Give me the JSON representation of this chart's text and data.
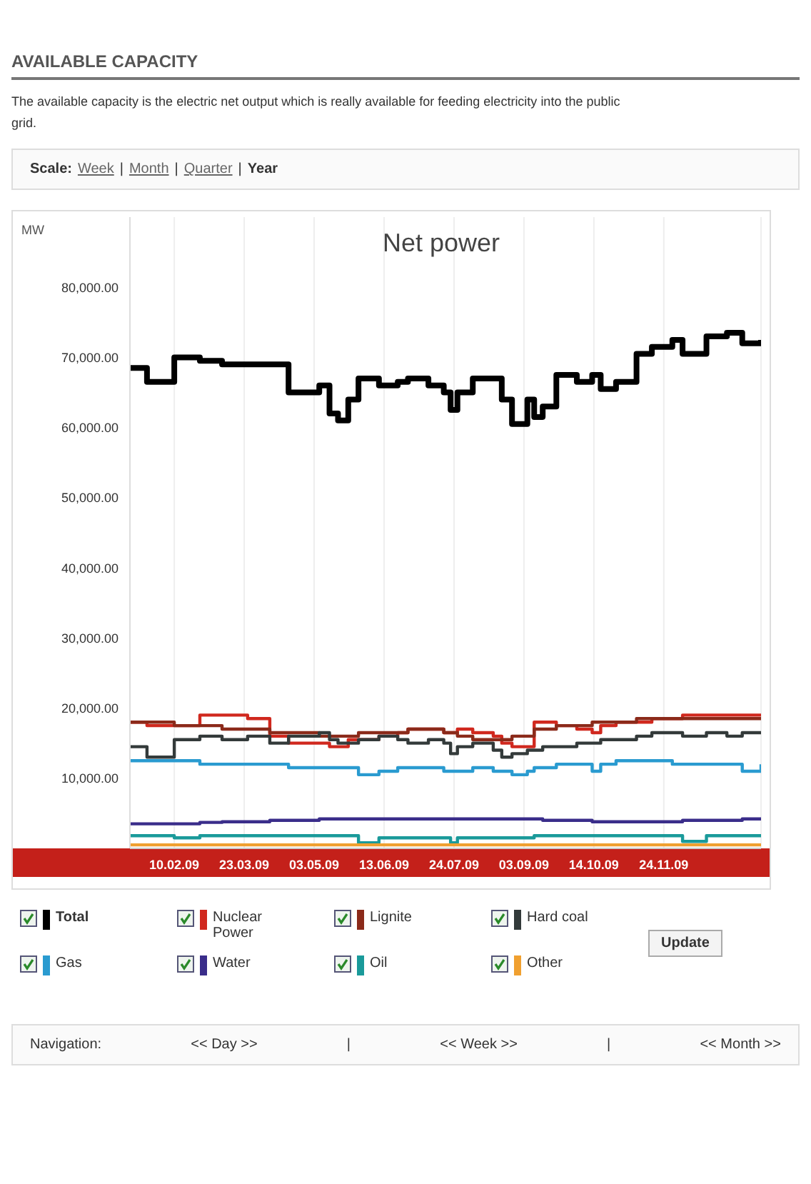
{
  "chart_data": {
    "type": "step",
    "title": "AVAILABLE CAPACITY",
    "subtitle": "The available capacity is the electric net output which is really available for feeding electricity into the public grid.",
    "ylabel": "MW",
    "annotations": [
      "Net power",
      "Scale:",
      "Week",
      "|",
      "Month",
      "|",
      "Quarter",
      "|",
      "Year",
      "Update",
      "Navigation:",
      "<< Day >>",
      "|",
      "<< Week >>",
      "|",
      "<< Month >>"
    ],
    "x": [
      "2009-01-15",
      "2009-01-25",
      "2009-02-10",
      "2009-02-25",
      "2009-03-10",
      "2009-03-25",
      "2009-04-07",
      "2009-04-18",
      "2009-05-06",
      "2009-05-12",
      "2009-05-17",
      "2009-05-23",
      "2009-05-29",
      "2009-06-10",
      "2009-06-21",
      "2009-06-27",
      "2009-07-09",
      "2009-07-18",
      "2009-07-22",
      "2009-07-26",
      "2009-08-04",
      "2009-08-16",
      "2009-08-21",
      "2009-08-27",
      "2009-09-05",
      "2009-09-09",
      "2009-09-14",
      "2009-09-22",
      "2009-10-04",
      "2009-10-13",
      "2009-10-18",
      "2009-10-27",
      "2009-11-08",
      "2009-11-17",
      "2009-11-29",
      "2009-12-05",
      "2009-12-19",
      "2009-12-31",
      "2010-01-09",
      "2010-01-20"
    ],
    "series": [
      {
        "name": "Total",
        "color": "#000000",
        "values": [
          68500,
          66500,
          70000,
          69500,
          69000,
          69000,
          69000,
          65000,
          66000,
          62000,
          61000,
          64000,
          67000,
          66000,
          66500,
          67000,
          66000,
          65000,
          62500,
          65000,
          67000,
          67000,
          64000,
          60500,
          64000,
          61500,
          63000,
          67500,
          66500,
          67500,
          65500,
          66500,
          70500,
          71500,
          72500,
          70500,
          73000,
          73500,
          72000,
          72500
        ]
      },
      {
        "name": "Nuclear Power",
        "color": "#d0281e",
        "values": [
          18000,
          17500,
          17500,
          19000,
          19000,
          18500,
          16000,
          15000,
          15000,
          14500,
          14500,
          15500,
          15500,
          16000,
          16500,
          17000,
          17000,
          16500,
          16500,
          17000,
          16500,
          16000,
          15000,
          14500,
          14500,
          18000,
          18000,
          17500,
          17000,
          16500,
          17500,
          18000,
          18000,
          18500,
          18500,
          19000,
          19000,
          19000,
          19000,
          19000
        ]
      },
      {
        "name": "Lignite",
        "color": "#8b2a1a",
        "values": [
          18000,
          18000,
          17500,
          17500,
          17000,
          17000,
          16500,
          16500,
          16000,
          16000,
          16000,
          16000,
          16500,
          16500,
          16500,
          17000,
          17000,
          16500,
          16500,
          16000,
          15500,
          15500,
          15500,
          16000,
          16000,
          17000,
          17000,
          17500,
          17500,
          18000,
          18000,
          18000,
          18500,
          18500,
          18500,
          18500,
          18500,
          18500,
          18500,
          18500
        ]
      },
      {
        "name": "Hard coal",
        "color": "#333a3a",
        "values": [
          14500,
          13000,
          15500,
          16000,
          15500,
          16000,
          15000,
          16000,
          16500,
          15500,
          15000,
          15000,
          15500,
          16000,
          15500,
          15000,
          15500,
          15000,
          13500,
          14500,
          15000,
          14000,
          13000,
          13500,
          14000,
          14000,
          14500,
          14500,
          15000,
          15000,
          15500,
          15500,
          16000,
          16500,
          16500,
          16000,
          16500,
          16000,
          16500,
          16500
        ]
      },
      {
        "name": "Gas",
        "color": "#2a9bd0",
        "values": [
          12500,
          12500,
          12500,
          12000,
          12000,
          12000,
          12000,
          11500,
          11500,
          11500,
          11500,
          11500,
          10500,
          11000,
          11500,
          11500,
          11500,
          11000,
          11000,
          11000,
          11500,
          11000,
          11000,
          10500,
          11000,
          11500,
          11500,
          12000,
          12000,
          11000,
          12000,
          12500,
          12500,
          12500,
          12000,
          12000,
          12000,
          12000,
          11000,
          12000
        ]
      },
      {
        "name": "Water",
        "color": "#3a2d8a",
        "values": [
          3500,
          3500,
          3500,
          3700,
          3800,
          3800,
          4000,
          4000,
          4200,
          4200,
          4200,
          4200,
          4200,
          4200,
          4200,
          4200,
          4200,
          4200,
          4200,
          4200,
          4200,
          4200,
          4200,
          4200,
          4200,
          4200,
          4000,
          4000,
          4000,
          3800,
          3800,
          3800,
          3800,
          3800,
          3800,
          4000,
          4000,
          4000,
          4200,
          4300
        ]
      },
      {
        "name": "Oil",
        "color": "#1a9a9a",
        "values": [
          1800,
          1800,
          1500,
          1800,
          1800,
          1800,
          1800,
          1800,
          1800,
          1800,
          1800,
          1800,
          800,
          1500,
          1500,
          1500,
          1500,
          1500,
          800,
          1500,
          1500,
          1500,
          1500,
          1500,
          1500,
          1800,
          1800,
          1800,
          1800,
          1800,
          1800,
          1800,
          1800,
          1800,
          1800,
          1000,
          1800,
          1800,
          1800,
          1800
        ]
      },
      {
        "name": "Other",
        "color": "#f0a030",
        "values": [
          500,
          500,
          500,
          500,
          500,
          500,
          500,
          500,
          500,
          500,
          500,
          500,
          500,
          500,
          500,
          500,
          500,
          500,
          500,
          500,
          500,
          500,
          500,
          500,
          500,
          500,
          500,
          500,
          500,
          500,
          500,
          500,
          500,
          500,
          500,
          500,
          500,
          500,
          500,
          500
        ]
      }
    ],
    "xlim": [
      "2009-01-15",
      "2010-01-20"
    ],
    "xticks": [
      {
        "value": "2009-02-10",
        "label": "10.02.09"
      },
      {
        "value": "2009-03-23",
        "label": "23.03.09"
      },
      {
        "value": "2009-05-03",
        "label": "03.05.09"
      },
      {
        "value": "2009-06-13",
        "label": "13.06.09"
      },
      {
        "value": "2009-07-24",
        "label": "24.07.09"
      },
      {
        "value": "2009-09-03",
        "label": "03.09.09"
      },
      {
        "value": "2009-10-14",
        "label": "14.10.09"
      },
      {
        "value": "2009-11-24",
        "label": "24.11.09"
      }
    ],
    "ylim": [
      0,
      90000
    ],
    "yticks": [
      {
        "value": 10000,
        "label": "10,000.00"
      },
      {
        "value": 20000,
        "label": "20,000.00"
      },
      {
        "value": 30000,
        "label": "30,000.00"
      },
      {
        "value": 40000,
        "label": "40,000.00"
      },
      {
        "value": 50000,
        "label": "50,000.00"
      },
      {
        "value": 60000,
        "label": "60,000.00"
      },
      {
        "value": 70000,
        "label": "70,000.00"
      },
      {
        "value": 80000,
        "label": "80,000.00"
      }
    ],
    "grid": "x",
    "legend": "bottom",
    "line_style": "solid",
    "marker": "none"
  }
}
